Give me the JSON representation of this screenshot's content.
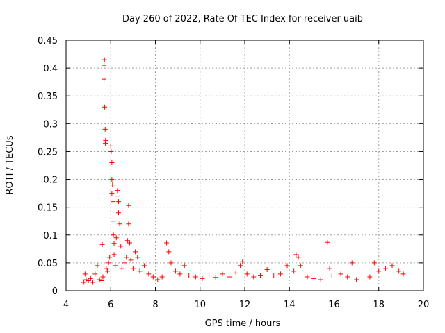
{
  "chart_data": {
    "type": "scatter",
    "title": "Day 260 of 2022, Rate Of TEC Index for receiver uaib",
    "xlabel": "GPS time / hours",
    "ylabel": "ROTI / TECUs",
    "xlim": [
      4,
      20
    ],
    "ylim": [
      0,
      0.45
    ],
    "xticks": [
      4,
      6,
      8,
      10,
      12,
      14,
      16,
      18,
      20
    ],
    "yticks": [
      0,
      0.05,
      0.1,
      0.15,
      0.2,
      0.25,
      0.3,
      0.35,
      0.4,
      0.45
    ],
    "xtick_labels": [
      "4",
      "6",
      "8",
      "10",
      "12",
      "14",
      "16",
      "18",
      "20"
    ],
    "ytick_labels": [
      "0",
      "0.05",
      "0.1",
      "0.15",
      "0.2",
      "0.25",
      "0.3",
      "0.35",
      "0.4",
      "0.45"
    ],
    "grid": true,
    "marker": "+",
    "color": "#ff0000",
    "series": [
      {
        "points": [
          [
            4.8,
            0.015
          ],
          [
            4.85,
            0.03
          ],
          [
            4.9,
            0.02
          ],
          [
            5.0,
            0.018
          ],
          [
            5.1,
            0.022
          ],
          [
            5.2,
            0.015
          ],
          [
            5.3,
            0.03
          ],
          [
            5.4,
            0.045
          ],
          [
            5.5,
            0.02
          ],
          [
            5.6,
            0.018
          ],
          [
            5.62,
            0.083
          ],
          [
            5.65,
            0.025
          ],
          [
            5.7,
            0.405
          ],
          [
            5.72,
            0.415
          ],
          [
            5.7,
            0.38
          ],
          [
            5.73,
            0.33
          ],
          [
            5.75,
            0.29
          ],
          [
            5.77,
            0.27
          ],
          [
            5.76,
            0.265
          ],
          [
            5.8,
            0.04
          ],
          [
            5.85,
            0.035
          ],
          [
            5.9,
            0.05
          ],
          [
            5.95,
            0.06
          ],
          [
            6.0,
            0.26
          ],
          [
            6.02,
            0.25
          ],
          [
            6.05,
            0.23
          ],
          [
            6.05,
            0.2
          ],
          [
            6.08,
            0.19
          ],
          [
            6.05,
            0.175
          ],
          [
            6.1,
            0.16
          ],
          [
            6.1,
            0.125
          ],
          [
            6.12,
            0.1
          ],
          [
            6.15,
            0.085
          ],
          [
            6.15,
            0.065
          ],
          [
            6.2,
            0.045
          ],
          [
            6.25,
            0.095
          ],
          [
            6.3,
            0.18
          ],
          [
            6.32,
            0.17
          ],
          [
            6.35,
            0.16
          ],
          [
            6.35,
            0.14
          ],
          [
            6.4,
            0.12
          ],
          [
            6.45,
            0.08
          ],
          [
            6.5,
            0.04
          ],
          [
            6.6,
            0.05
          ],
          [
            6.7,
            0.06
          ],
          [
            6.75,
            0.09
          ],
          [
            6.8,
            0.153
          ],
          [
            6.8,
            0.12
          ],
          [
            6.85,
            0.086
          ],
          [
            6.9,
            0.055
          ],
          [
            7.0,
            0.04
          ],
          [
            7.1,
            0.07
          ],
          [
            7.2,
            0.06
          ],
          [
            7.3,
            0.035
          ],
          [
            7.5,
            0.045
          ],
          [
            7.7,
            0.03
          ],
          [
            7.9,
            0.025
          ],
          [
            8.1,
            0.02
          ],
          [
            8.3,
            0.025
          ],
          [
            8.5,
            0.086
          ],
          [
            8.6,
            0.07
          ],
          [
            8.7,
            0.05
          ],
          [
            8.9,
            0.035
          ],
          [
            9.1,
            0.03
          ],
          [
            9.3,
            0.045
          ],
          [
            9.5,
            0.028
          ],
          [
            9.8,
            0.025
          ],
          [
            10.1,
            0.022
          ],
          [
            10.4,
            0.028
          ],
          [
            10.7,
            0.024
          ],
          [
            11.0,
            0.03
          ],
          [
            11.3,
            0.025
          ],
          [
            11.6,
            0.032
          ],
          [
            11.8,
            0.045
          ],
          [
            11.9,
            0.052
          ],
          [
            12.1,
            0.03
          ],
          [
            12.4,
            0.025
          ],
          [
            12.7,
            0.027
          ],
          [
            13.0,
            0.038
          ],
          [
            13.3,
            0.028
          ],
          [
            13.6,
            0.03
          ],
          [
            13.9,
            0.045
          ],
          [
            14.2,
            0.035
          ],
          [
            14.3,
            0.065
          ],
          [
            14.4,
            0.06
          ],
          [
            14.5,
            0.045
          ],
          [
            14.8,
            0.025
          ],
          [
            15.1,
            0.022
          ],
          [
            15.4,
            0.02
          ],
          [
            15.7,
            0.087
          ],
          [
            15.8,
            0.04
          ],
          [
            15.9,
            0.028
          ],
          [
            16.3,
            0.03
          ],
          [
            16.6,
            0.025
          ],
          [
            16.8,
            0.05
          ],
          [
            17.0,
            0.02
          ],
          [
            17.6,
            0.025
          ],
          [
            17.8,
            0.05
          ],
          [
            18.0,
            0.035
          ],
          [
            18.3,
            0.04
          ],
          [
            18.6,
            0.045
          ],
          [
            18.9,
            0.035
          ],
          [
            19.1,
            0.03
          ]
        ]
      }
    ]
  }
}
